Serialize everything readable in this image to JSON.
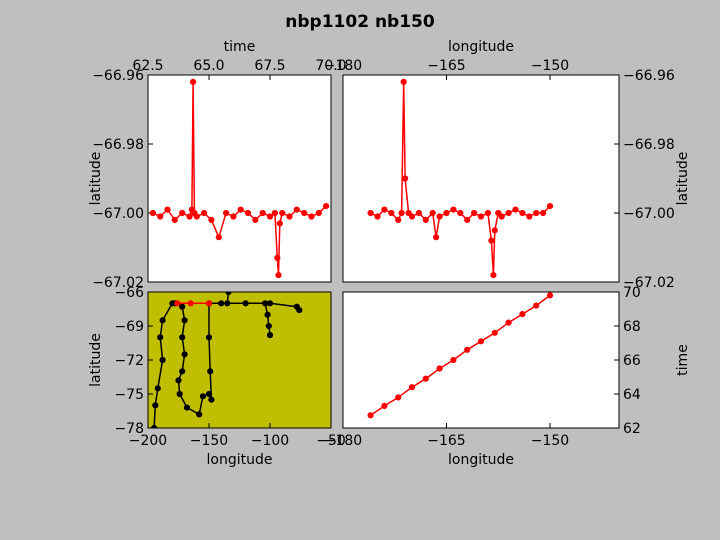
{
  "figure": {
    "title": "nbp1102 nb150",
    "background": "#bfbfbf"
  },
  "chart_data": [
    {
      "id": "top-left",
      "type": "line",
      "xlabel": "time",
      "ylabel": "latitude",
      "xlim": [
        62.5,
        70.0
      ],
      "ylim": [
        -67.02,
        -66.96
      ],
      "xticks": [
        "62.5",
        "65.0",
        "67.5",
        "70.0"
      ],
      "xtick_values": [
        62.5,
        65.0,
        67.5,
        70.0
      ],
      "yticks": [
        "−66.96",
        "−66.98",
        "−67.00",
        "−67.02"
      ],
      "ytick_values": [
        -66.96,
        -66.98,
        -67.0,
        -67.02
      ],
      "x_axis_position": "top",
      "y_axis_position": "left",
      "series": [
        {
          "color": "#ff0000",
          "marker": "o",
          "x": [
            62.7,
            63.0,
            63.3,
            63.6,
            63.9,
            64.2,
            64.3,
            64.35,
            64.4,
            64.5,
            64.8,
            65.1,
            65.4,
            65.7,
            66.0,
            66.3,
            66.6,
            66.9,
            67.2,
            67.5,
            67.7,
            67.8,
            67.85,
            67.9,
            68.0,
            68.3,
            68.6,
            68.9,
            69.2,
            69.5,
            69.8
          ],
          "y": [
            -67.0,
            -67.001,
            -66.999,
            -67.002,
            -67.0,
            -67.001,
            -66.999,
            -66.962,
            -67.0,
            -67.001,
            -67.0,
            -67.002,
            -67.007,
            -67.0,
            -67.001,
            -66.999,
            -67.0,
            -67.002,
            -67.0,
            -67.001,
            -67.0,
            -67.013,
            -67.018,
            -67.003,
            -67.0,
            -67.001,
            -66.999,
            -67.0,
            -67.001,
            -67.0,
            -66.998
          ]
        }
      ]
    },
    {
      "id": "top-right",
      "type": "line",
      "xlabel": "longitude",
      "ylabel": "latitude",
      "xlim": [
        -180,
        -140
      ],
      "ylim": [
        -67.02,
        -66.96
      ],
      "xticks": [
        "−180",
        "−165",
        "−150"
      ],
      "xtick_values": [
        -180,
        -165,
        -150
      ],
      "yticks": [
        "−66.96",
        "−66.98",
        "−67.00",
        "−67.02"
      ],
      "ytick_values": [
        -66.96,
        -66.98,
        -67.0,
        -67.02
      ],
      "x_axis_position": "top",
      "y_axis_position": "right",
      "series": [
        {
          "color": "#ff0000",
          "marker": "o",
          "x": [
            -176.0,
            -175.0,
            -174.0,
            -173.0,
            -172.0,
            -171.5,
            -171.2,
            -171.0,
            -170.5,
            -170.0,
            -169.0,
            -168.0,
            -167.0,
            -166.5,
            -166.0,
            -165.0,
            -164.0,
            -163.0,
            -162.0,
            -161.0,
            -160.0,
            -159.0,
            -158.5,
            -158.2,
            -158.0,
            -157.5,
            -157.0,
            -156.0,
            -155.0,
            -154.0,
            -153.0,
            -152.0,
            -151.0,
            -150.0
          ],
          "y": [
            -67.0,
            -67.001,
            -66.999,
            -67.0,
            -67.002,
            -67.0,
            -66.962,
            -66.99,
            -67.0,
            -67.001,
            -67.0,
            -67.002,
            -67.0,
            -67.007,
            -67.001,
            -67.0,
            -66.999,
            -67.0,
            -67.002,
            -67.0,
            -67.001,
            -67.0,
            -67.008,
            -67.018,
            -67.005,
            -67.0,
            -67.001,
            -67.0,
            -66.999,
            -67.0,
            -67.001,
            -67.0,
            -67.0,
            -66.998
          ]
        }
      ]
    },
    {
      "id": "bottom-left",
      "type": "line",
      "xlabel": "longitude",
      "ylabel": "latitude",
      "xlim": [
        -200,
        -50
      ],
      "ylim": [
        -78,
        -66
      ],
      "xticks": [
        "−200",
        "−150",
        "−100",
        "−50"
      ],
      "xtick_values": [
        -200,
        -150,
        -100,
        -50
      ],
      "yticks": [
        "−66",
        "−69",
        "−72",
        "−75",
        "−78"
      ],
      "ytick_values": [
        -66,
        -69,
        -72,
        -75,
        -78
      ],
      "plot_background": "#bfbf00",
      "series": [
        {
          "color": "#000000",
          "marker": "o",
          "segments": [
            [
              [
                -178,
                -67
              ],
              [
                -140,
                -67
              ],
              [
                -120,
                -67
              ],
              [
                -100,
                -67
              ],
              [
                -78,
                -67.3
              ],
              [
                -76,
                -67.6
              ]
            ],
            [
              [
                -134,
                -66
              ],
              [
                -135,
                -67
              ]
            ],
            [
              [
                -180,
                -67
              ],
              [
                -188,
                -68.5
              ],
              [
                -190,
                -70
              ],
              [
                -188,
                -72
              ],
              [
                -192,
                -74.5
              ],
              [
                -194,
                -76
              ],
              [
                -195,
                -78
              ]
            ],
            [
              [
                -150,
                -67
              ],
              [
                -150,
                -70
              ],
              [
                -149,
                -73
              ],
              [
                -148,
                -75.5
              ],
              [
                -150,
                -75
              ],
              [
                -155,
                -75.2
              ],
              [
                -158,
                -76.8
              ],
              [
                -168,
                -76.2
              ],
              [
                -174,
                -75
              ],
              [
                -175,
                -73.8
              ],
              [
                -172,
                -73
              ],
              [
                -170,
                -71.5
              ],
              [
                -172,
                -70
              ],
              [
                -170,
                -68.5
              ],
              [
                -172,
                -67.3
              ]
            ],
            [
              [
                -104,
                -67
              ],
              [
                -102,
                -68
              ],
              [
                -101,
                -69
              ],
              [
                -100,
                -69.8
              ]
            ]
          ]
        },
        {
          "color": "#ff0000",
          "marker": "o",
          "segments": [
            [
              [
                -176,
                -67
              ],
              [
                -165,
                -67
              ],
              [
                -150,
                -67
              ]
            ]
          ]
        }
      ]
    },
    {
      "id": "bottom-right",
      "type": "line",
      "xlabel": "longitude",
      "ylabel": "time",
      "xlim": [
        -180,
        -140
      ],
      "ylim": [
        62,
        70
      ],
      "xticks": [
        "−180",
        "−165",
        "−150"
      ],
      "xtick_values": [
        -180,
        -165,
        -150
      ],
      "yticks": [
        "62",
        "64",
        "66",
        "68",
        "70"
      ],
      "ytick_values": [
        62,
        64,
        66,
        68,
        70
      ],
      "y_axis_position": "right",
      "series": [
        {
          "color": "#ff0000",
          "marker": "o",
          "x": [
            -176,
            -174,
            -172,
            -170,
            -168,
            -166,
            -164,
            -162,
            -160,
            -158,
            -156,
            -154,
            -152,
            -150
          ],
          "y": [
            62.75,
            63.3,
            63.8,
            64.4,
            64.9,
            65.5,
            66.0,
            66.6,
            67.1,
            67.6,
            68.2,
            68.7,
            69.2,
            69.8
          ]
        }
      ]
    }
  ]
}
